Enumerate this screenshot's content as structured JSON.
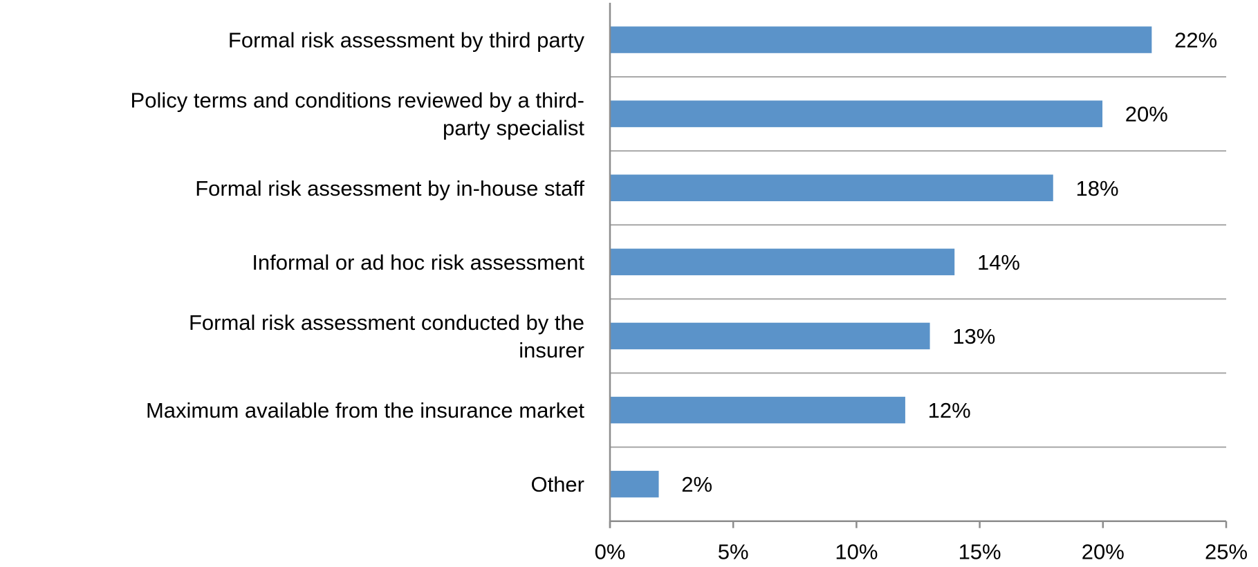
{
  "chart_data": {
    "type": "bar",
    "orientation": "horizontal",
    "categories": [
      "Formal risk assessment by third party",
      "Policy terms and conditions reviewed by a third-party specialist",
      "Formal risk assessment by in-house staff",
      "Informal or ad hoc risk assessment",
      "Formal risk assessment conducted by the insurer",
      "Maximum available from the insurance market",
      "Other"
    ],
    "category_lines": [
      [
        "Formal risk assessment by third party"
      ],
      [
        "Policy terms and conditions reviewed by a third-",
        "party specialist"
      ],
      [
        "Formal risk assessment by in-house staff"
      ],
      [
        "Informal or ad hoc risk assessment"
      ],
      [
        "Formal risk assessment conducted by the",
        "insurer"
      ],
      [
        "Maximum available from the insurance market"
      ],
      [
        "Other"
      ]
    ],
    "values": [
      22,
      20,
      18,
      14,
      13,
      12,
      2
    ],
    "data_labels": [
      "22%",
      "20%",
      "18%",
      "14%",
      "13%",
      "12%",
      "2%"
    ],
    "xlim": [
      0,
      25
    ],
    "xticks": [
      0,
      5,
      10,
      15,
      20,
      25
    ],
    "xtick_labels": [
      "0%",
      "5%",
      "10%",
      "15%",
      "20%",
      "25%"
    ],
    "title": "",
    "xlabel": "",
    "ylabel": "",
    "grid": "horizontal separators between categories",
    "legend": "none",
    "bar_color": "#5b93c9",
    "bar_edge_color": "#ffffff",
    "grid_color": "#a6a6a6",
    "axis_color": "#8c8c8c"
  }
}
